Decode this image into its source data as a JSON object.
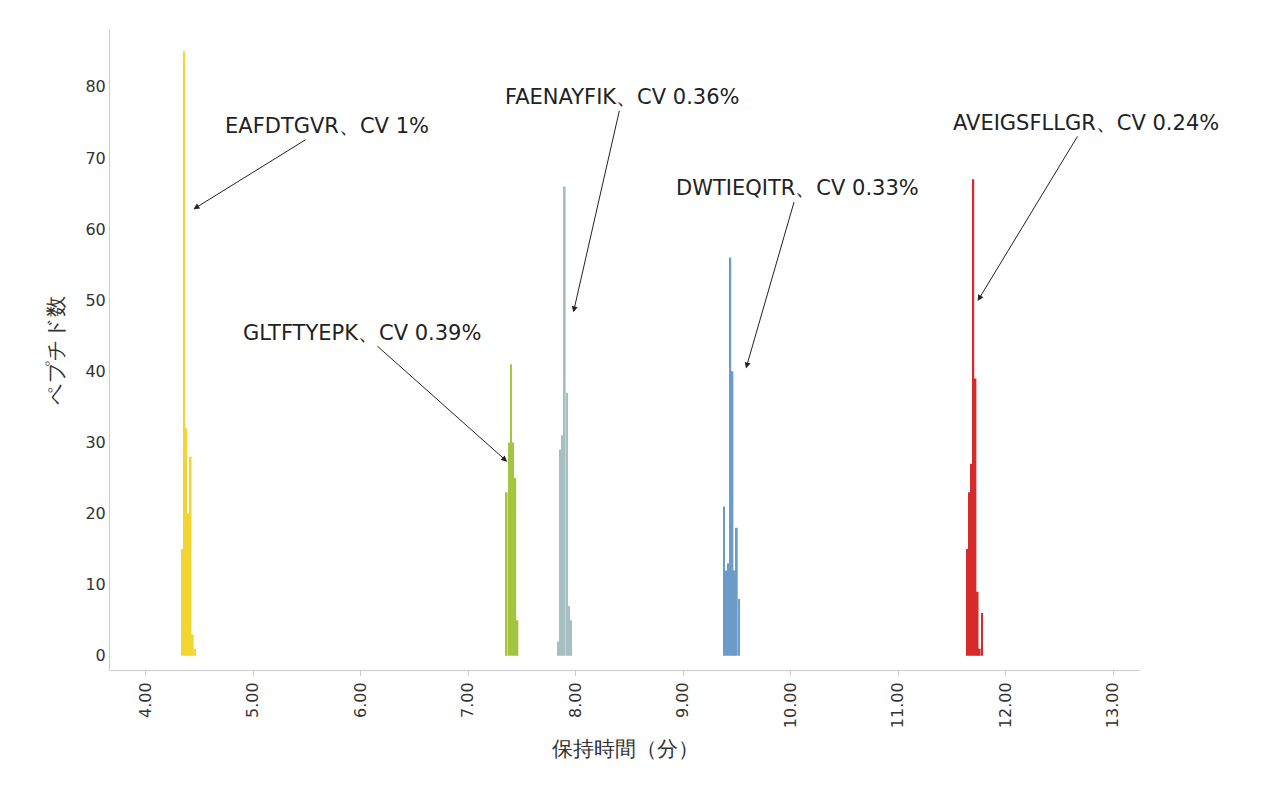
{
  "chart_data": {
    "type": "bar",
    "x_label": "保持時間（分）",
    "y_label": "ペプチド数",
    "xlim": [
      3.67,
      13.25
    ],
    "xticks": [
      {
        "value": 4,
        "label": "4.00"
      },
      {
        "value": 5,
        "label": "5.00"
      },
      {
        "value": 6,
        "label": "6.00"
      },
      {
        "value": 7,
        "label": "7.00"
      },
      {
        "value": 8,
        "label": "8.00"
      },
      {
        "value": 9,
        "label": "9.00"
      },
      {
        "value": 10,
        "label": "10.00"
      },
      {
        "value": 11,
        "label": "11.00"
      },
      {
        "value": 12,
        "label": "12.00"
      },
      {
        "value": 13,
        "label": "13.00"
      }
    ],
    "ylim": [
      -2,
      88
    ],
    "yticks": [
      0,
      10,
      20,
      30,
      40,
      50,
      60,
      70,
      80
    ],
    "grid": false,
    "series": [
      {
        "color": "#f2d530",
        "x": [
          4.34,
          4.36,
          4.38,
          4.4,
          4.42,
          4.44,
          4.46
        ],
        "values": [
          15,
          85,
          32,
          20,
          28,
          3,
          1
        ]
      },
      {
        "color": "#a2c640",
        "x": [
          7.36,
          7.38,
          7.4,
          7.42,
          7.44,
          7.46
        ],
        "values": [
          23,
          30,
          41,
          30,
          25,
          5
        ]
      },
      {
        "color": "#a6bfc0",
        "x": [
          7.84,
          7.86,
          7.88,
          7.9,
          7.92,
          7.94,
          7.96
        ],
        "values": [
          2,
          29,
          31,
          66,
          37,
          7,
          5
        ]
      },
      {
        "color": "#6b9bc8",
        "x": [
          9.38,
          9.4,
          9.42,
          9.44,
          9.46,
          9.48,
          9.5,
          9.52
        ],
        "values": [
          21,
          12,
          13,
          56,
          40,
          12,
          18,
          8
        ]
      },
      {
        "color": "#d62b2b",
        "x": [
          11.64,
          11.66,
          11.68,
          11.7,
          11.72,
          11.74,
          11.76,
          11.78
        ],
        "values": [
          15,
          23,
          27,
          67,
          39,
          9,
          1,
          6
        ]
      }
    ],
    "annotations": [
      {
        "text": "EAFDTGVR、CV 1%",
        "x": 4.446,
        "y": 62.8
      },
      {
        "text": "FAENAYFIK、CV 0.36%",
        "x": 7.98,
        "y": 48.3
      },
      {
        "text": "GLTFTYEPK、CV 0.39%",
        "x": 7.364,
        "y": 27.3
      },
      {
        "text": "DWTIEQITR、CV 0.33%",
        "x": 9.585,
        "y": 40.4
      },
      {
        "text": "AVEIGSFLLGR、CV 0.24%",
        "x": 11.74,
        "y": 49.9
      }
    ]
  }
}
